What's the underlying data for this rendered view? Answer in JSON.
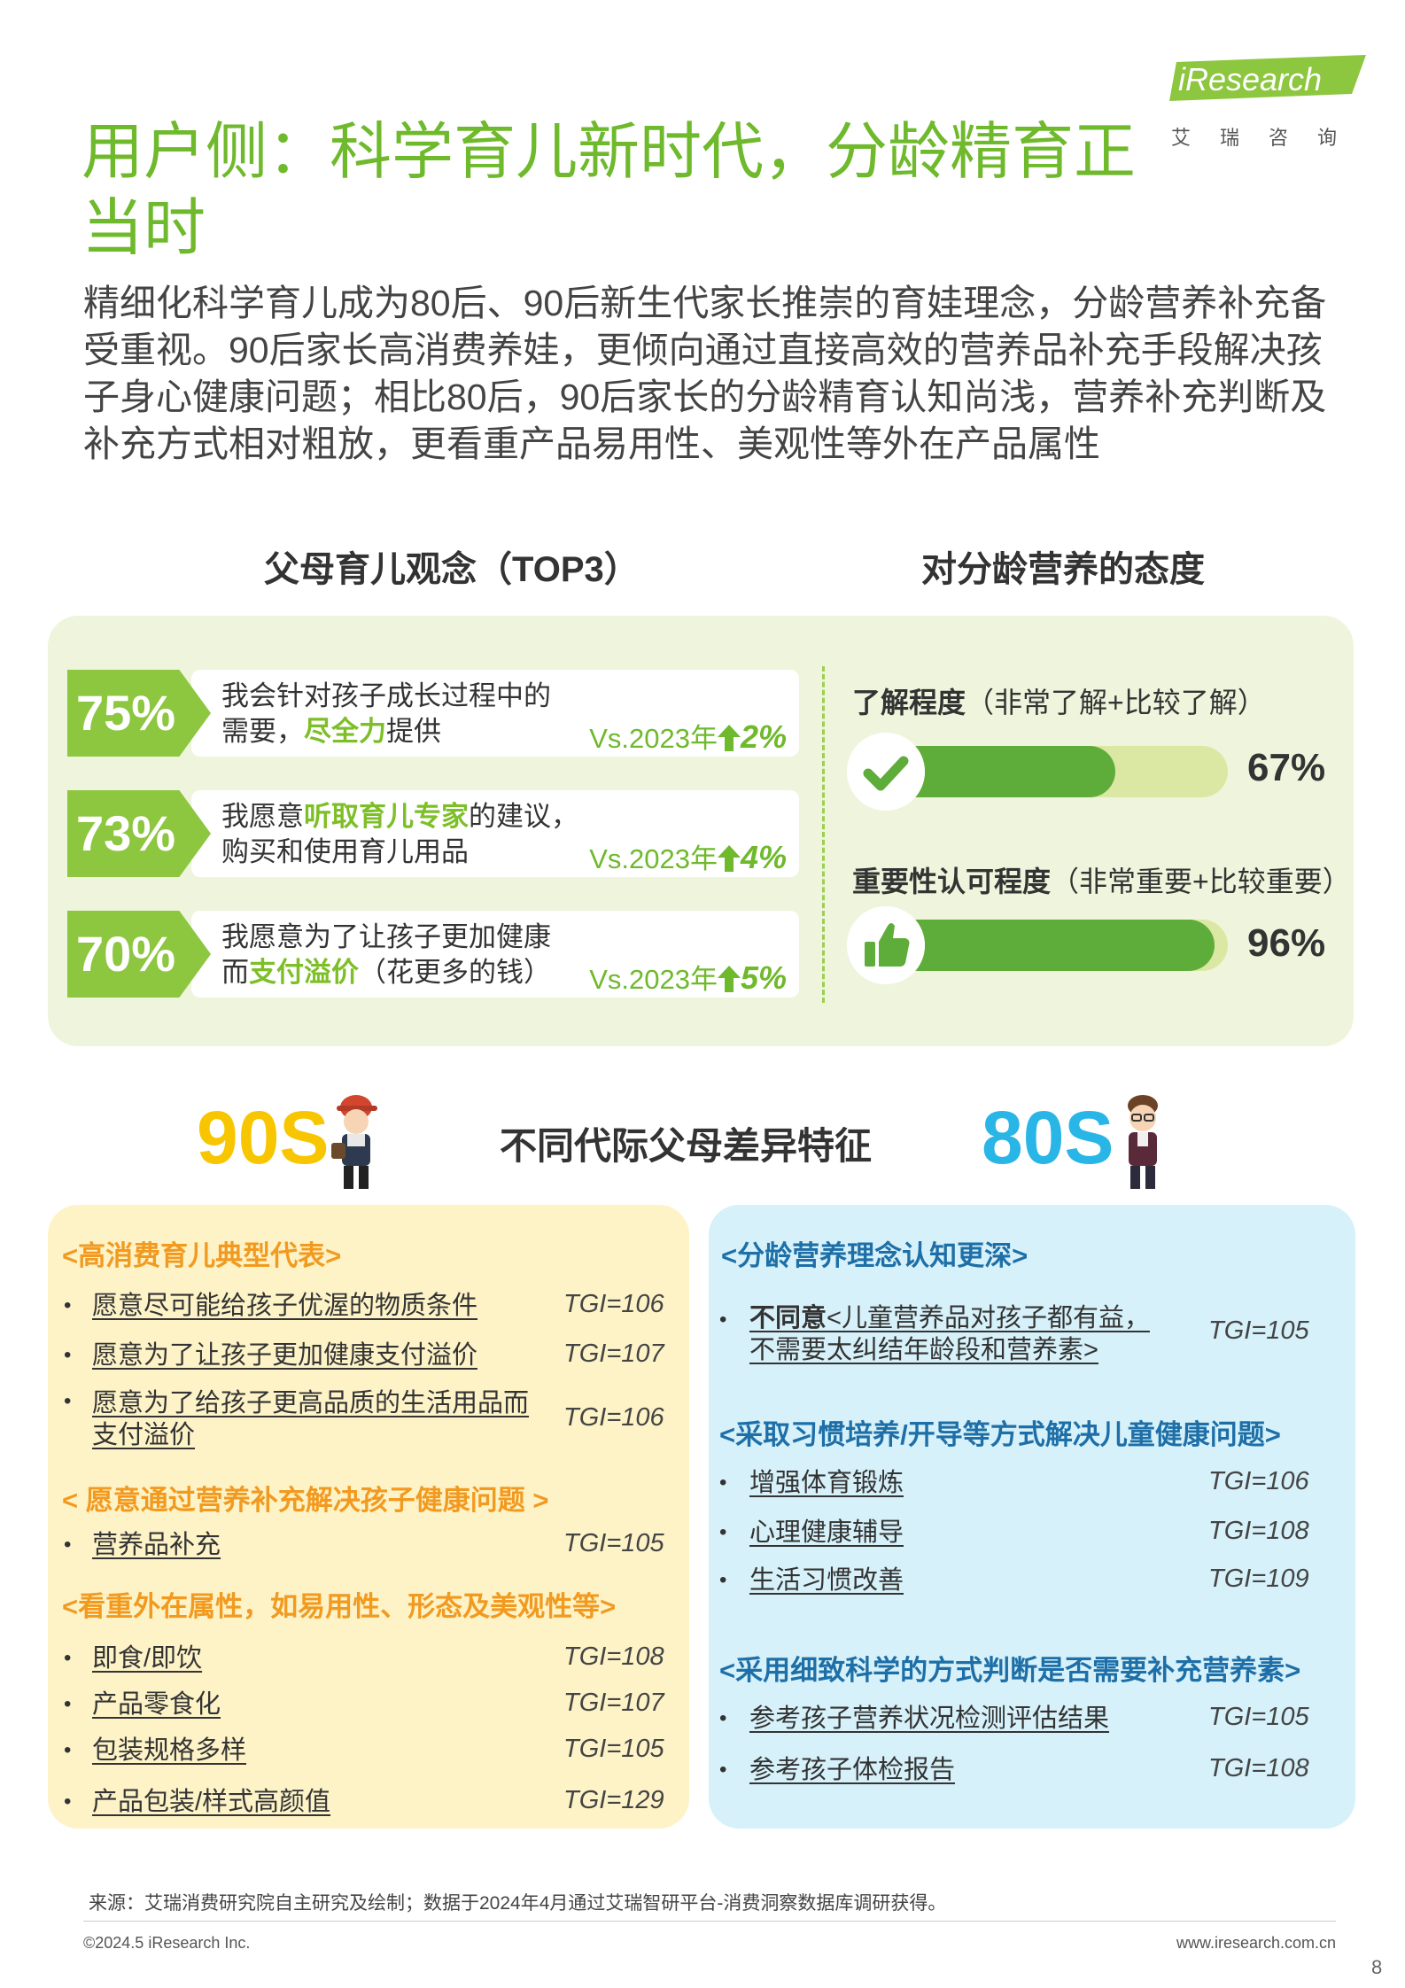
{
  "logo": {
    "text": "iResearch",
    "sub": "艾瑞咨询"
  },
  "title": "用户侧：科学育儿新时代，分龄精育正当时",
  "intro": "精细化科学育儿成为80后、90后新生代家长推崇的育娃理念，分龄营养补充备受重视。90后家长高消费养娃，更倾向通过直接高效的营养品补充手段解决孩子身心健康问题；相比80后，90后家长的分龄精育认知尚浅，营养补充判断及补充方式相对粗放，更看重产品易用性、美观性等外在产品属性",
  "section_left": "父母育儿观念（TOP3）",
  "section_right": "对分龄营养的态度",
  "stats": [
    {
      "pct": "75%",
      "line1": "我会针对孩子成长过程中的",
      "line2_pre": "需要，",
      "line2_hl": "尽全力",
      "line2_post": "提供",
      "vs": "Vs.2023年",
      "delta": "2%",
      "progress": 0.75
    },
    {
      "pct": "73%",
      "line1_pre": "我愿意",
      "line1_hl": "听取育儿专家",
      "line1_post": "的建议，",
      "line2": "购买和使用育儿用品",
      "vs": "Vs.2023年",
      "delta": "4%",
      "progress": 0.73
    },
    {
      "pct": "70%",
      "line1": "我愿意为了让孩子更加健康",
      "line2_pre": "而",
      "line2_hl": "支付溢价",
      "line2_post": "（花更多的钱）",
      "vs": "Vs.2023年",
      "delta": "5%",
      "progress": 0.7
    }
  ],
  "attitude": [
    {
      "label_bold": "了解程度",
      "label_rest": "（非常了解+比较了解）",
      "value": "67%",
      "fraction": 0.67,
      "icon": "check-icon"
    },
    {
      "label_bold": "重要性认可程度",
      "label_rest": "（非常重要+比较重要）",
      "value": "96%",
      "fraction": 0.96,
      "icon": "thumbs-up-icon"
    }
  ],
  "generations": {
    "left": "90S",
    "center": "不同代际父母差异特征",
    "right": "80S"
  },
  "panel_90s": {
    "groups": [
      {
        "heading": "<高消费育儿典型代表>",
        "items": [
          {
            "text": "愿意尽可能给孩子优渥的物质条件",
            "tgi": "TGI=106"
          },
          {
            "text": "愿意为了让孩子更加健康支付溢价",
            "tgi": "TGI=107"
          },
          {
            "text": "愿意为了给孩子更高品质的生活用品而支付溢价",
            "tgi": "TGI=106"
          }
        ]
      },
      {
        "heading": "< 愿意通过营养补充解决孩子健康问题 >",
        "items": [
          {
            "text": "营养品补充",
            "tgi": "TGI=105"
          }
        ]
      },
      {
        "heading": "<看重外在属性，如易用性、形态及美观性等>",
        "items": [
          {
            "text": "即食/即饮",
            "tgi": "TGI=108"
          },
          {
            "text": "产品零食化",
            "tgi": "TGI=107"
          },
          {
            "text": "包装规格多样",
            "tgi": "TGI=105"
          },
          {
            "text": "产品包装/样式高颜值",
            "tgi": "TGI=129"
          }
        ]
      }
    ]
  },
  "panel_80s": {
    "groups": [
      {
        "heading": "<分龄营养理念认知更深>",
        "items": [
          {
            "bold": "不同意",
            "text": "<儿童营养品对孩子都有益，不需要太纠结年龄段和营养素>",
            "tgi": "TGI=105"
          }
        ]
      },
      {
        "heading": "<采取习惯培养/开导等方式解决儿童健康问题>",
        "items": [
          {
            "text": "增强体育锻炼",
            "tgi": "TGI=106"
          },
          {
            "text": "心理健康辅导",
            "tgi": "TGI=108"
          },
          {
            "text": "生活习惯改善",
            "tgi": "TGI=109"
          }
        ]
      },
      {
        "heading": "<采用细致科学的方式判断是否需要补充营养素>",
        "items": [
          {
            "text": "参考孩子营养状况检测评估结果",
            "tgi": "TGI=105"
          },
          {
            "text": "参考孩子体检报告",
            "tgi": "TGI=108"
          }
        ]
      }
    ]
  },
  "colors": {
    "green": "#6fb92c",
    "accent_green": "#8dc63f",
    "yellow": "#f7c600",
    "blue": "#29b6e6",
    "orange": "#f29a20",
    "navy": "#1e6fa8"
  },
  "footer": {
    "source": "来源：艾瑞消费研究院自主研究及绘制；数据于2024年4月通过艾瑞智研平台-消费洞察数据库调研获得。",
    "copyright": "©2024.5 iResearch Inc.",
    "site": "www.iresearch.com.cn",
    "page": "8"
  }
}
